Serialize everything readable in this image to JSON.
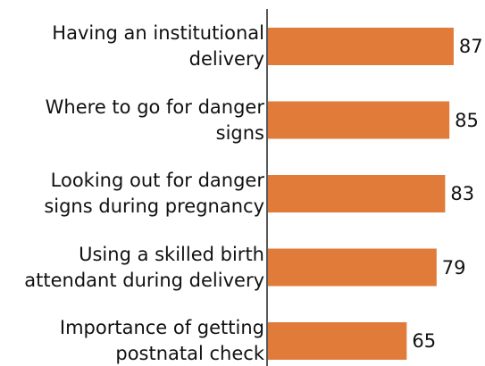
{
  "chart_data": {
    "type": "bar",
    "orientation": "horizontal",
    "categories": [
      "Having an institutional\ndelivery",
      "Where to go for danger\nsigns",
      "Looking out for danger\nsigns during pregnancy",
      "Using a skilled birth\nattendant during delivery",
      "Importance of getting\npostnatal check"
    ],
    "values": [
      87,
      85,
      83,
      79,
      65
    ],
    "color": "#e07b39"
  }
}
